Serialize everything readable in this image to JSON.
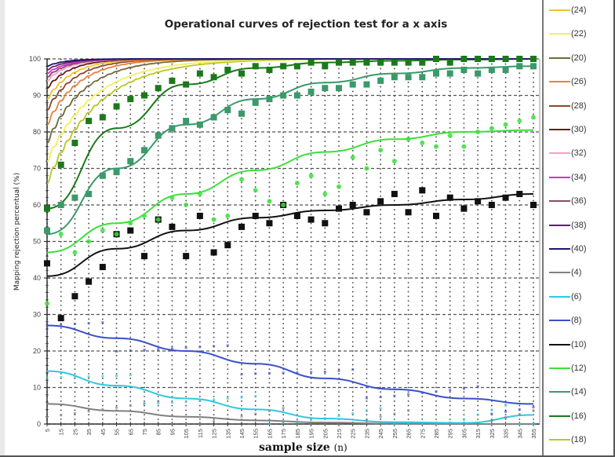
{
  "chart_data": {
    "type": "scatter",
    "title": "Operational curves of rejection test for a x axis",
    "xlabel": "sample size",
    "xlabel_unit": "(n)",
    "ylabel": "Mapping rejection percentual (%)",
    "ylim": [
      0,
      100
    ],
    "xlim": [
      5,
      355
    ],
    "yticks": [
      0,
      10,
      20,
      30,
      40,
      50,
      60,
      70,
      80,
      90,
      100
    ],
    "xticks": [
      5,
      15,
      25,
      35,
      45,
      55,
      65,
      75,
      85,
      95,
      105,
      115,
      125,
      135,
      145,
      155,
      165,
      175,
      185,
      195,
      205,
      215,
      225,
      235,
      245,
      255,
      265,
      275,
      285,
      295,
      305,
      315,
      325,
      335,
      345,
      355
    ],
    "grid": "dotted",
    "legend_position": "right",
    "series": [
      {
        "name": "(24)",
        "color": "#f2c230",
        "start": 89,
        "rate": 0.055,
        "marker": "none"
      },
      {
        "name": "(22)",
        "color": "#f5f05a",
        "start": 72,
        "rate": 0.03,
        "marker": "none"
      },
      {
        "name": "(20)",
        "color": "#6f6a3a",
        "start": 77,
        "rate": 0.038,
        "marker": "none"
      },
      {
        "name": "(26)",
        "color": "#e8823a",
        "start": 82,
        "rate": 0.045,
        "marker": "none"
      },
      {
        "name": "(28)",
        "color": "#8a4a2a",
        "start": 86,
        "rate": 0.05,
        "marker": "none"
      },
      {
        "name": "(30)",
        "color": "#6a1a1a",
        "start": 92,
        "rate": 0.06,
        "marker": "none"
      },
      {
        "name": "(32)",
        "color": "#f0a0c8",
        "start": 94,
        "rate": 0.065,
        "marker": "none"
      },
      {
        "name": "(34)",
        "color": "#d030d0",
        "start": 96,
        "rate": 0.07,
        "marker": "none"
      },
      {
        "name": "(36)",
        "color": "#8a4a6a",
        "start": 95,
        "rate": 0.068,
        "marker": "none"
      },
      {
        "name": "(38)",
        "color": "#6a1a6a",
        "start": 97,
        "rate": 0.075,
        "marker": "none"
      },
      {
        "name": "(40)",
        "color": "#1a1a6a",
        "start": 98,
        "rate": 0.08,
        "marker": "none"
      },
      {
        "name": "(4)",
        "color": "#808080",
        "points": [
          [
            5,
            5.5
          ],
          [
            55,
            3.6
          ],
          [
            105,
            2.0
          ],
          [
            155,
            1.0
          ],
          [
            205,
            0.4
          ],
          [
            255,
            0.1
          ],
          [
            305,
            0.0
          ],
          [
            355,
            0.0
          ]
        ],
        "marker": "small"
      },
      {
        "name": "(6)",
        "color": "#30c8e0",
        "points": [
          [
            5,
            14.5
          ],
          [
            55,
            10.5
          ],
          [
            105,
            7.0
          ],
          [
            155,
            4.0
          ],
          [
            205,
            1.5
          ],
          [
            255,
            0.5
          ],
          [
            305,
            0.3
          ],
          [
            355,
            2.5
          ]
        ],
        "marker": "small"
      },
      {
        "name": "(8)",
        "color": "#3a50c8",
        "points": [
          [
            5,
            27
          ],
          [
            55,
            23.5
          ],
          [
            105,
            20
          ],
          [
            155,
            16.5
          ],
          [
            205,
            12.5
          ],
          [
            255,
            9.5
          ],
          [
            305,
            7
          ],
          [
            355,
            5.5
          ]
        ],
        "marker": "small"
      },
      {
        "name": "(10)",
        "color": "#111111",
        "points": [
          [
            5,
            40.5
          ],
          [
            55,
            48
          ],
          [
            105,
            53
          ],
          [
            155,
            56.5
          ],
          [
            205,
            58.5
          ],
          [
            255,
            60
          ],
          [
            305,
            61.5
          ],
          [
            355,
            63
          ]
        ],
        "marker": "square"
      },
      {
        "name": "(12)",
        "color": "#3ce03c",
        "points": [
          [
            5,
            47
          ],
          [
            55,
            55
          ],
          [
            105,
            63
          ],
          [
            155,
            69.5
          ],
          [
            205,
            74.5
          ],
          [
            255,
            78
          ],
          [
            305,
            80
          ],
          [
            355,
            80.5
          ]
        ],
        "marker": "diamond"
      },
      {
        "name": "(14)",
        "color": "#3a9a6a",
        "points": [
          [
            5,
            52
          ],
          [
            55,
            70
          ],
          [
            105,
            82
          ],
          [
            155,
            89
          ],
          [
            205,
            93.5
          ],
          [
            255,
            96
          ],
          [
            305,
            97.5
          ],
          [
            355,
            98
          ]
        ],
        "marker": "square"
      },
      {
        "name": "(16)",
        "color": "#1a7a1a",
        "points": [
          [
            5,
            59
          ],
          [
            55,
            81
          ],
          [
            105,
            93
          ],
          [
            155,
            97.5
          ],
          [
            205,
            99
          ],
          [
            255,
            99.5
          ],
          [
            305,
            99.8
          ],
          [
            355,
            100
          ]
        ],
        "marker": "square"
      },
      {
        "name": "(18)",
        "color": "#b8c820",
        "start": 66,
        "rate": 0.028,
        "marker": "none"
      }
    ],
    "observations": {
      "(10)": [
        44,
        29,
        35,
        39,
        43,
        52,
        53,
        46,
        56,
        54,
        46,
        57,
        47,
        49,
        54,
        57,
        55,
        60,
        57,
        56,
        55,
        59,
        60,
        58,
        61,
        63,
        58,
        64,
        57,
        62,
        59,
        61,
        60,
        62,
        63,
        60
      ],
      "(12)": [
        33,
        52,
        47,
        50,
        53,
        52,
        55,
        57,
        56,
        62,
        60,
        63,
        56,
        57,
        67,
        64,
        61,
        60,
        66,
        68,
        63,
        65,
        73,
        70,
        75,
        72,
        78,
        77,
        76,
        79,
        76,
        80,
        81,
        82,
        83,
        84
      ],
      "(14)": [
        53,
        60,
        62,
        63,
        68,
        69,
        72,
        75,
        79,
        81,
        83,
        82,
        84,
        86,
        85,
        88,
        89,
        90,
        90,
        91,
        92,
        92,
        93,
        93,
        94,
        95,
        95,
        95,
        96,
        96,
        97,
        96,
        97,
        97,
        98,
        98
      ],
      "(16)": [
        59,
        71,
        77,
        83,
        84,
        87,
        89,
        90,
        92,
        94,
        93,
        96,
        95,
        97,
        96,
        98,
        97,
        98,
        98,
        99,
        98,
        99,
        99,
        99,
        99,
        99,
        99,
        99,
        100,
        99,
        100,
        100,
        100,
        100,
        100,
        100
      ]
    }
  },
  "legend": {
    "items": [
      "(24)",
      "(22)",
      "(20)",
      "(26)",
      "(28)",
      "(30)",
      "(32)",
      "(34)",
      "(36)",
      "(38)",
      "(40)",
      "(4)",
      "(6)",
      "(8)",
      "(10)",
      "(12)",
      "(14)",
      "(16)",
      "(18)"
    ]
  },
  "colors": {
    "grid_dots": "#333333",
    "axis": "#333333",
    "background": "#ffffff"
  }
}
